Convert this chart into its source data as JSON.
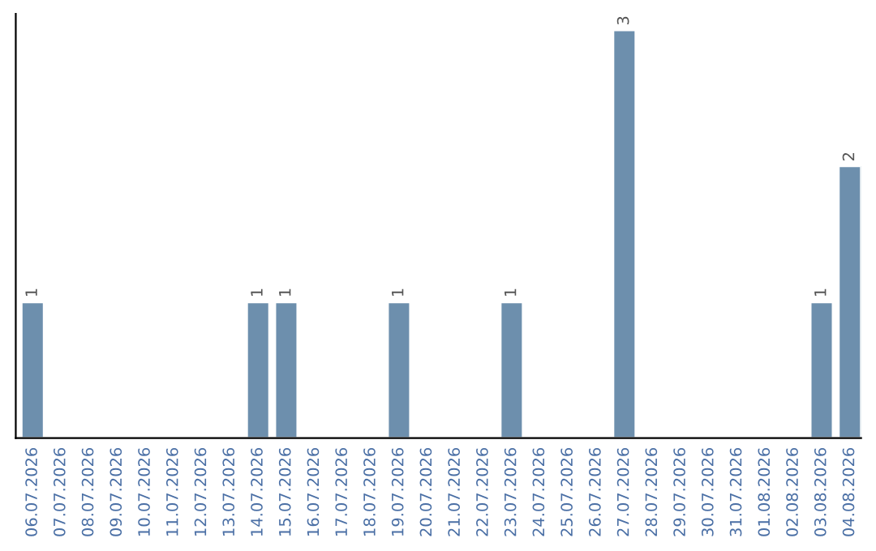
{
  "chart_data": {
    "type": "bar",
    "categories": [
      "06.07.2026",
      "07.07.2026",
      "08.07.2026",
      "09.07.2026",
      "10.07.2026",
      "11.07.2026",
      "12.07.2026",
      "13.07.2026",
      "14.07.2026",
      "15.07.2026",
      "16.07.2026",
      "17.07.2026",
      "18.07.2026",
      "19.07.2026",
      "20.07.2026",
      "21.07.2026",
      "22.07.2026",
      "23.07.2026",
      "24.07.2026",
      "25.07.2026",
      "26.07.2026",
      "27.07.2026",
      "28.07.2026",
      "29.07.2026",
      "30.07.2026",
      "31.07.2026",
      "01.08.2026",
      "02.08.2026",
      "03.08.2026",
      "04.08.2026"
    ],
    "values": [
      1,
      0,
      0,
      0,
      0,
      0,
      0,
      0,
      1,
      1,
      0,
      0,
      0,
      1,
      0,
      0,
      0,
      1,
      0,
      0,
      0,
      3,
      0,
      0,
      0,
      0,
      0,
      0,
      1,
      2
    ],
    "value_labels": [
      "1",
      null,
      null,
      null,
      null,
      null,
      null,
      null,
      "1",
      "1",
      null,
      null,
      null,
      "1",
      null,
      null,
      null,
      "1",
      null,
      null,
      null,
      "3",
      null,
      null,
      null,
      null,
      null,
      null,
      "1",
      "2"
    ],
    "color": "#6d8fad",
    "tick_labels": "x",
    "grid": false,
    "legend": false
  }
}
